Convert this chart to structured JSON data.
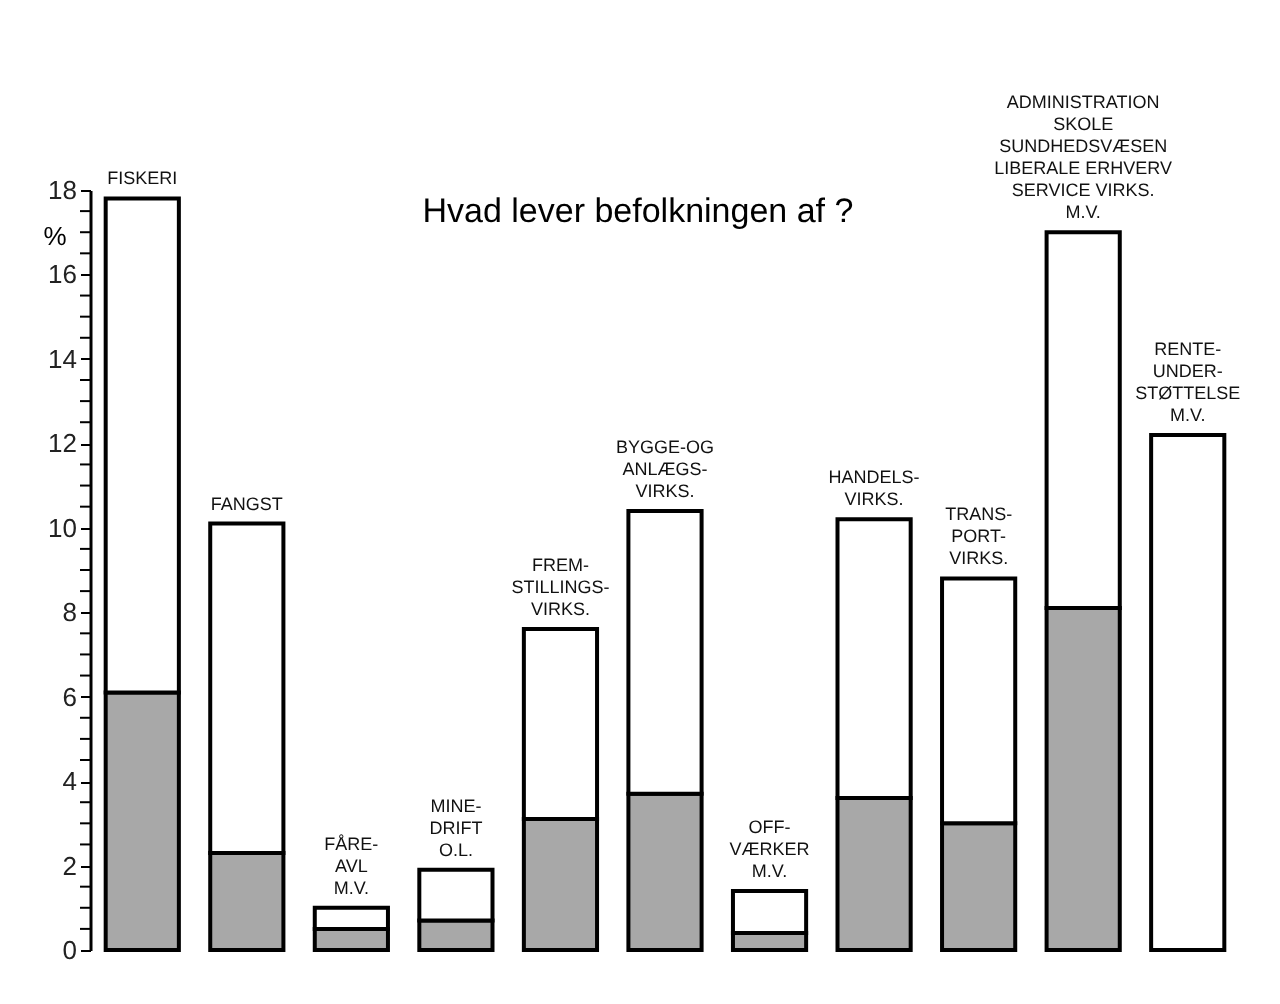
{
  "chart_data": {
    "type": "bar",
    "title": "Hvad lever befolkningen af ?",
    "ylabel": "%",
    "categories": [
      "FISKERI",
      "FANGST",
      "FÅRE-\nAVL\nM.V.",
      "MINE-\nDRIFT\nO.L.",
      "FREM-\nSTILLINGS-\nVIRKS.",
      "BYGGE-OG\nANLÆGS-\nVIRKS.",
      "OFF-\nVÆRKER\nM.V.",
      "HANDELS-\nVIRKS.",
      "TRANS-\nPORT-\nVIRKS.",
      "ADMINISTRATION\nSKOLE\nSUNDHEDSVÆSEN\nLIBERALE ERHVERV\nSERVICE VIRKS.\nM.V.",
      "RENTE-\nUNDER-\nSTØTTELSE\nM.V."
    ],
    "stacked": true,
    "series": [
      {
        "color": "#a8a8a8",
        "values": [
          6.1,
          2.3,
          0.5,
          0.7,
          3.1,
          3.7,
          0.4,
          3.6,
          3.0,
          8.1,
          0
        ]
      },
      {
        "color": "#ffffff",
        "values": [
          11.7,
          7.8,
          0.5,
          1.2,
          4.5,
          6.7,
          1.0,
          6.6,
          5.8,
          8.9,
          12.2
        ]
      }
    ],
    "ylim": [
      0,
      18
    ],
    "yticks": [
      0,
      {
        "value": 0.5,
        "label": null
      },
      {
        "value": 1,
        "label": null
      },
      {
        "value": 1.5,
        "label": null
      },
      2,
      {
        "value": 2.5,
        "label": null
      },
      {
        "value": 3,
        "label": null
      },
      {
        "value": 3.5,
        "label": null
      },
      4,
      {
        "value": 4.5,
        "label": null
      },
      {
        "value": 5,
        "label": null
      },
      {
        "value": 5.5,
        "label": null
      },
      6,
      {
        "value": 6.5,
        "label": null
      },
      {
        "value": 7,
        "label": null
      },
      {
        "value": 7.5,
        "label": null
      },
      8,
      {
        "value": 8.5,
        "label": null
      },
      {
        "value": 9,
        "label": null
      },
      {
        "value": 9.5,
        "label": null
      },
      10,
      {
        "value": 10.5,
        "label": null
      },
      {
        "value": 11,
        "label": null
      },
      {
        "value": 11.5,
        "label": null
      },
      12,
      {
        "value": 12.5,
        "label": null
      },
      {
        "value": 13,
        "label": null
      },
      {
        "value": 13.5,
        "label": null
      },
      14,
      {
        "value": 14.5,
        "label": null
      },
      {
        "value": 15,
        "label": null
      },
      {
        "value": 15.5,
        "label": null
      },
      16,
      {
        "value": 16.5,
        "label": null
      },
      {
        "value": 17,
        "label": null
      },
      {
        "value": 17.5,
        "label": null
      },
      18
    ],
    "grid": false
  }
}
